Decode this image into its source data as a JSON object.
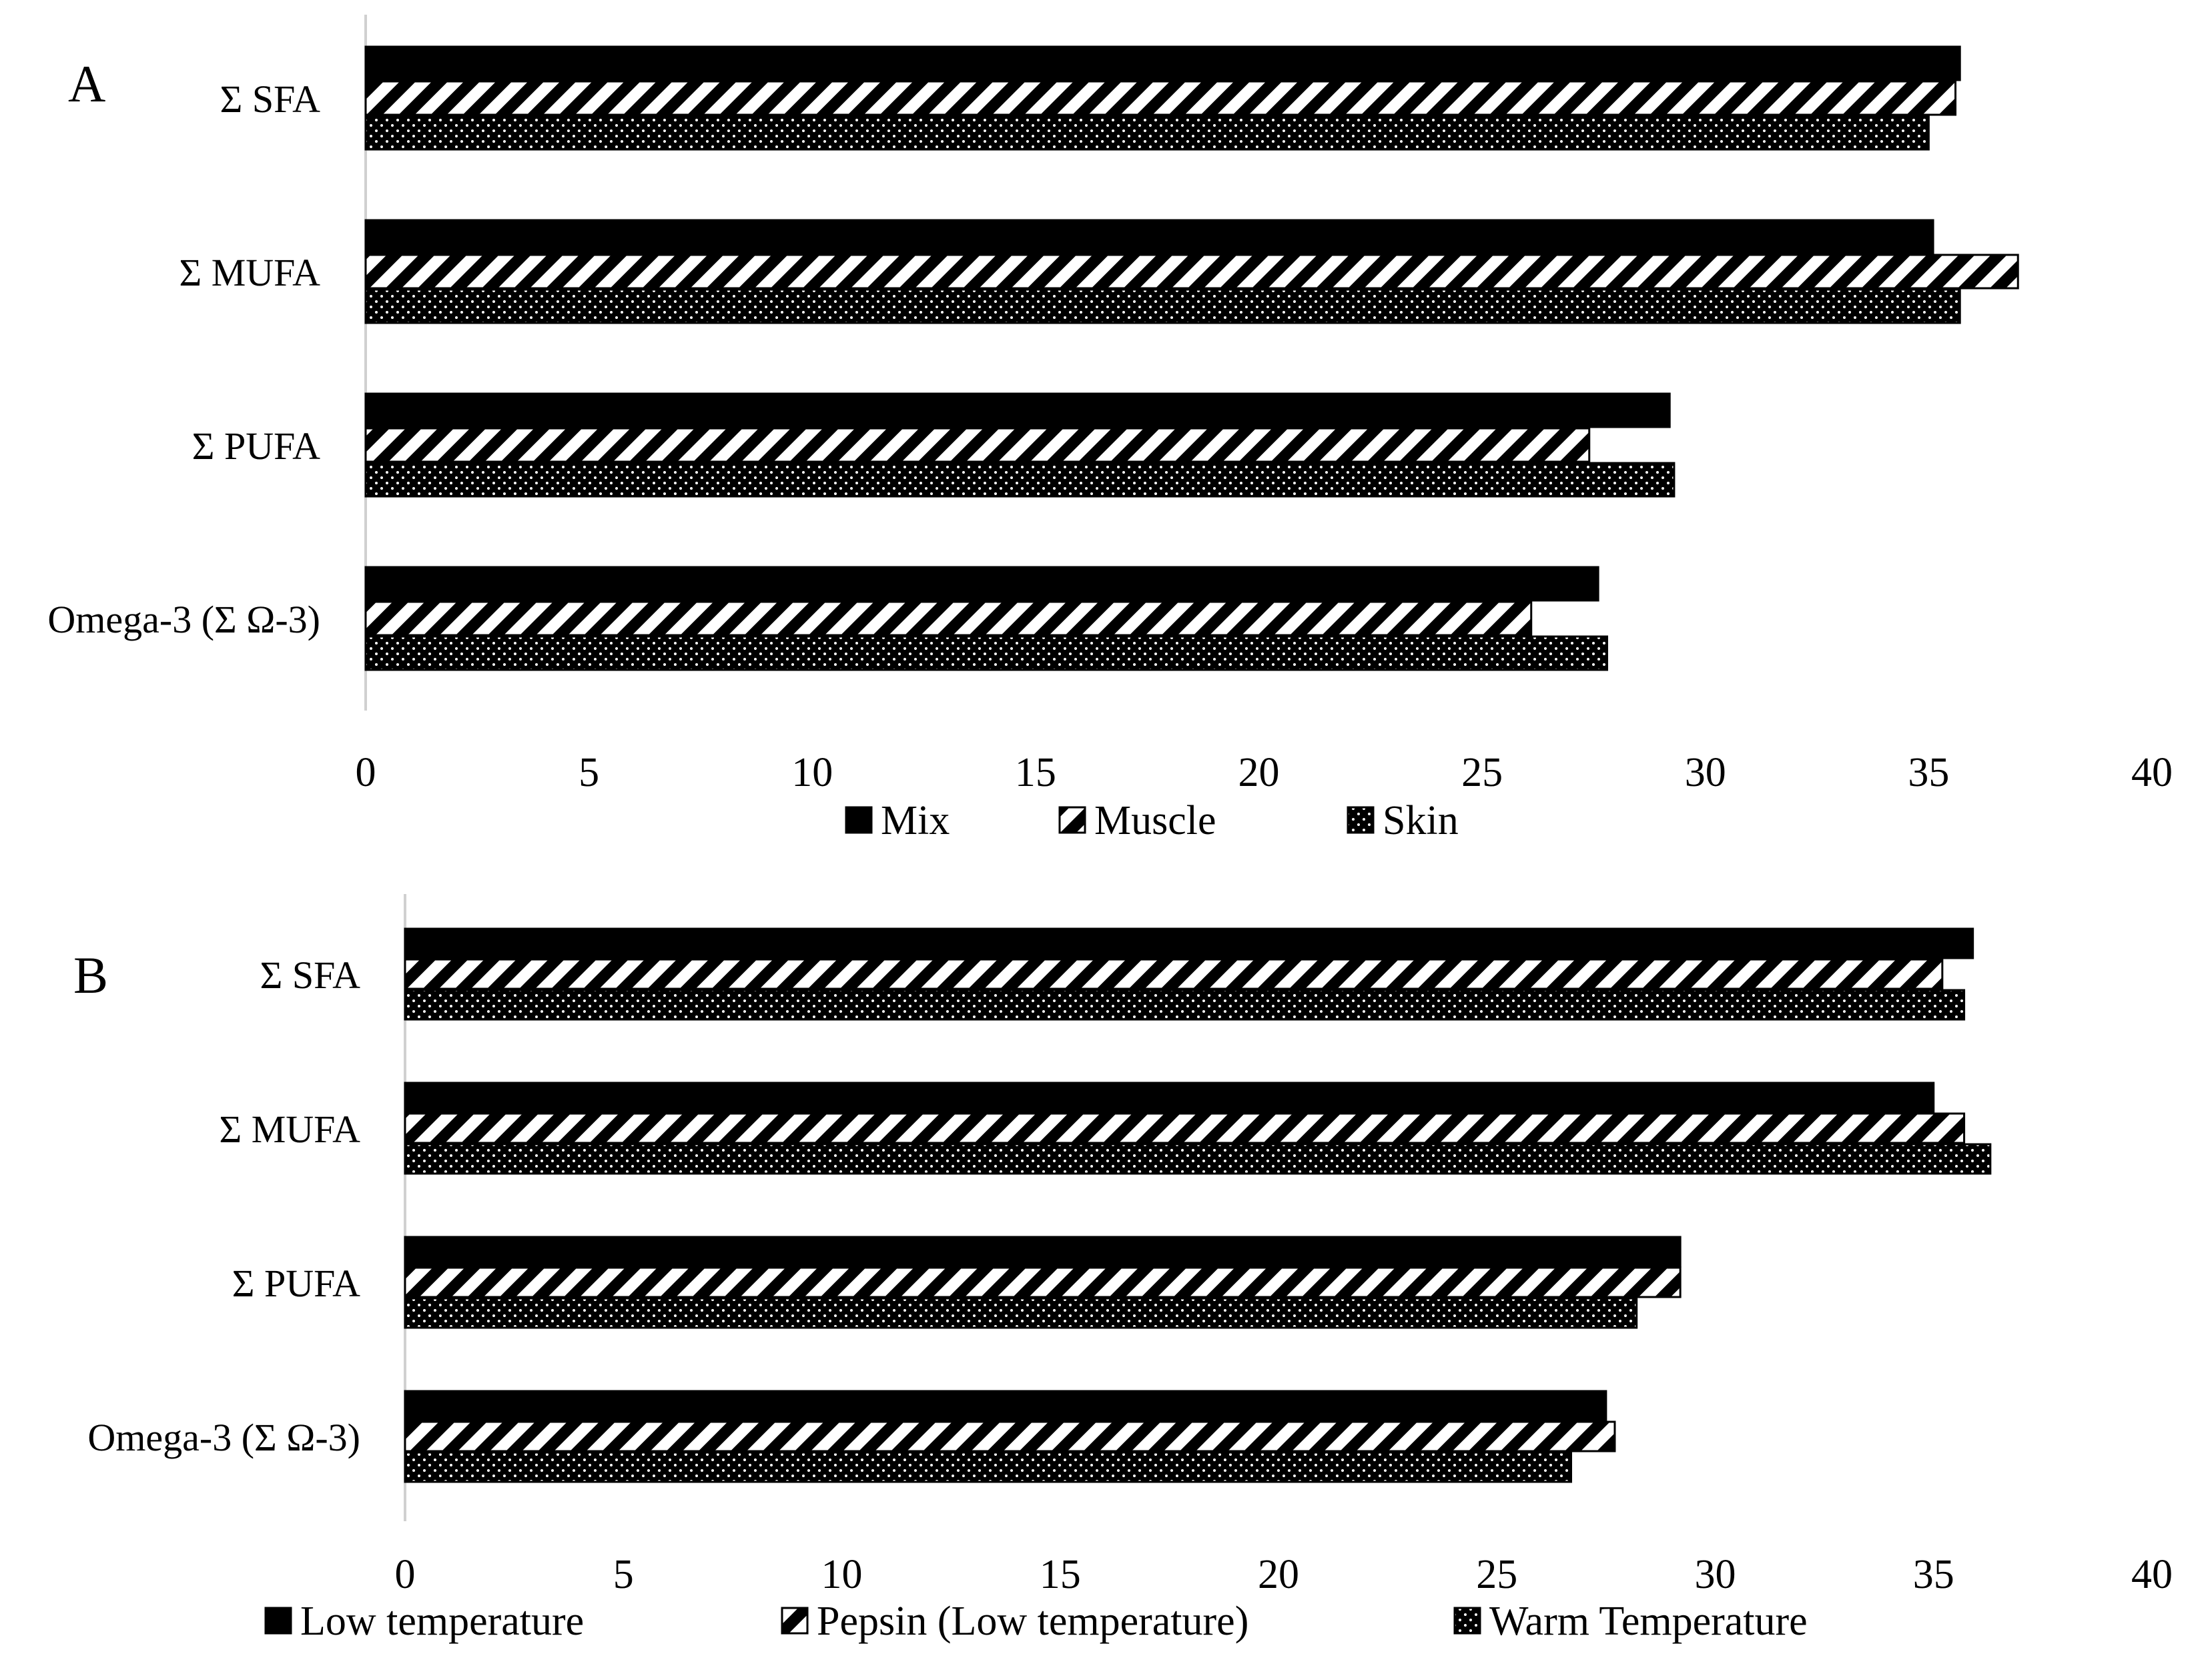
{
  "chart_data": [
    {
      "panel_label": "A",
      "type": "bar",
      "orientation": "horizontal",
      "categories": [
        "Σ SFA",
        "Σ MUFA",
        "Σ PUFA",
        "Omega-3 (Σ Ω-3)"
      ],
      "series": [
        {
          "name": "Mix",
          "pattern": "solid",
          "values": [
            35.7,
            35.1,
            29.2,
            27.6
          ]
        },
        {
          "name": "Muscle",
          "pattern": "diagonal-stripes",
          "values": [
            35.6,
            37.0,
            27.4,
            26.1
          ]
        },
        {
          "name": "Skin",
          "pattern": "dots",
          "values": [
            35.0,
            35.7,
            29.3,
            27.8
          ]
        }
      ],
      "xlim": [
        0,
        40
      ],
      "xticks": [
        "0",
        "5",
        "10",
        "15",
        "20",
        "25",
        "30",
        "35",
        "40"
      ],
      "grid": false,
      "legend": "bottom"
    },
    {
      "panel_label": "B",
      "type": "bar",
      "orientation": "horizontal",
      "categories": [
        "Σ SFA",
        "Σ MUFA",
        "Σ PUFA",
        "Omega-3 (Σ Ω-3)"
      ],
      "series": [
        {
          "name": "Low temperature",
          "pattern": "solid",
          "values": [
            35.9,
            35.0,
            29.2,
            27.5
          ]
        },
        {
          "name": "Pepsin (Low temperature)",
          "pattern": "diagonal-stripes",
          "values": [
            35.2,
            35.7,
            29.2,
            27.7
          ]
        },
        {
          "name": "Warm Temperature",
          "pattern": "dots",
          "values": [
            35.7,
            36.3,
            28.2,
            26.7
          ]
        }
      ],
      "xlim": [
        0,
        40
      ],
      "xticks": [
        "0",
        "5",
        "10",
        "15",
        "20",
        "25",
        "30",
        "35",
        "40"
      ],
      "grid": false,
      "legend": "bottom"
    }
  ],
  "colors": {
    "bar": "#000000",
    "axis": "#d0d0d0",
    "background": "#ffffff"
  }
}
